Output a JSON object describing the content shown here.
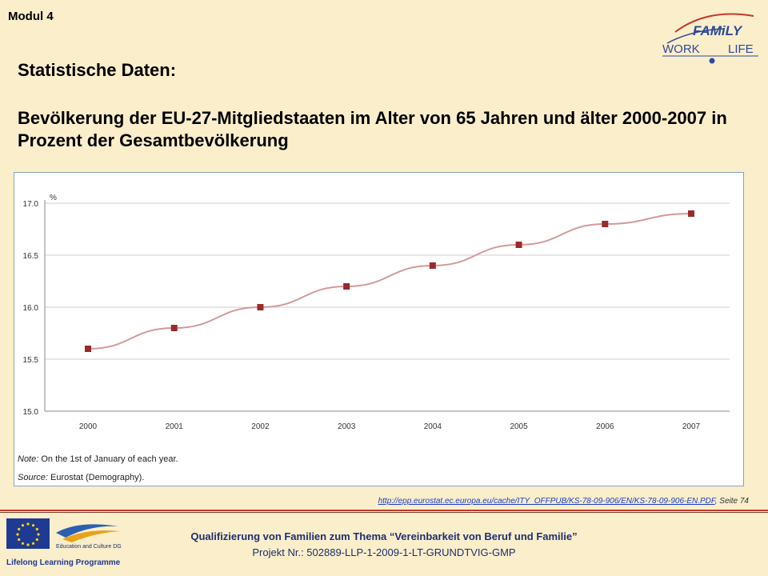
{
  "header": {
    "modul": "Modul 4",
    "logo_family": "FAMiLY",
    "logo_work": "WORK",
    "logo_life": "LIFE"
  },
  "heading": {
    "line1": "Statistische Daten:",
    "line2": "Bevölkerung der EU-27-Mitgliedstaaten im Alter von 65 Jahren und älter 2000-2007 in Prozent der Gesamtbevölkerung"
  },
  "chart_data": {
    "type": "line",
    "x": [
      "2000",
      "2001",
      "2002",
      "2003",
      "2004",
      "2005",
      "2006",
      "2007"
    ],
    "values": [
      15.6,
      15.8,
      16.0,
      16.2,
      16.4,
      16.6,
      16.8,
      16.9
    ],
    "ylabel": "%",
    "yticks": [
      "15.0",
      "15.5",
      "16.0",
      "16.5",
      "17.0"
    ],
    "ylim": [
      15.0,
      17.0
    ],
    "grid": true,
    "line_color": "#d29a9a",
    "marker_color": "#9b2a2a",
    "note_label": "Note:",
    "note_text": " On the 1st of January of each year.",
    "source_label": "Source:",
    "source_text": " Eurostat (Demography)."
  },
  "source": {
    "url": "http://epp.eurostat.ec.europa.eu/cache/ITY_OFFPUB/KS-78-09-906/EN/KS-78-09-906-EN.PDF",
    "suffix": ", Seite 74"
  },
  "footer": {
    "eu_caption": "Education and Culture DG",
    "llp_caption": "Lifelong Learning Programme",
    "line1": "Qualifizierung von Familien zum Thema “Vereinbarkeit von Beruf und Familie”",
    "line2": "Projekt Nr.: 502889-LLP-1-2009-1-LT-GRUNDTVIG-GMP"
  },
  "colors": {
    "background": "#faeecb",
    "footer_text": "#1f2f6e",
    "divider": "#c0392b"
  }
}
